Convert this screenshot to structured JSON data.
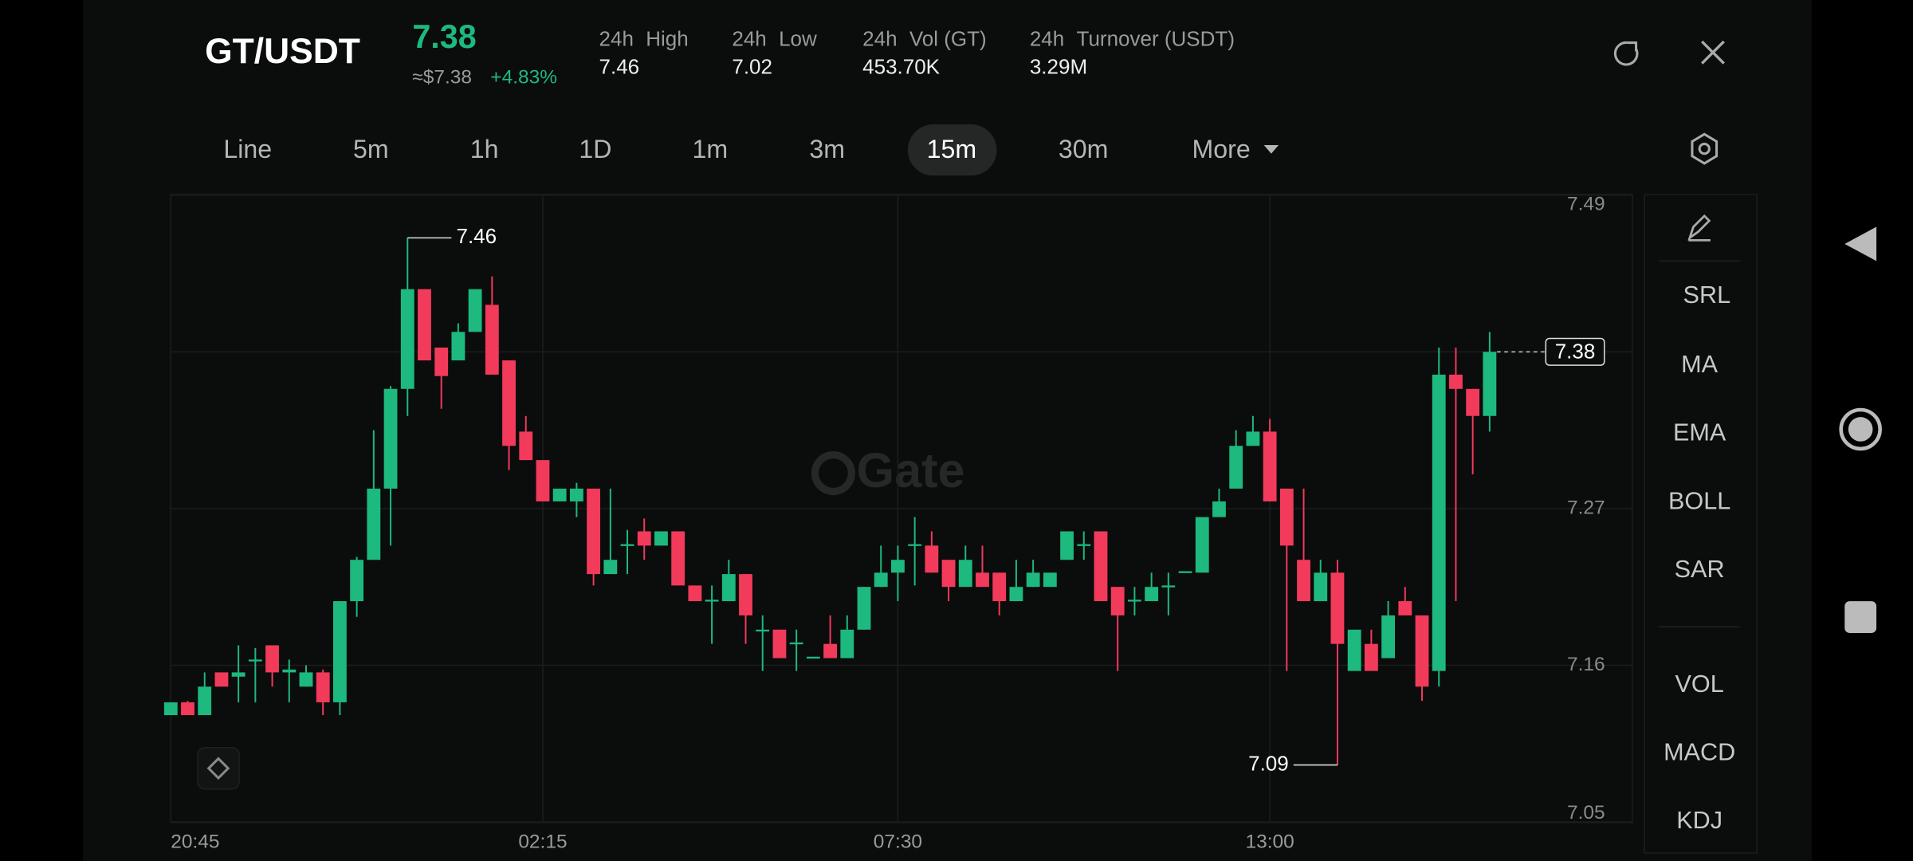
{
  "header": {
    "pair": "GT/USDT",
    "price": "7.38",
    "usd_price": "≈$7.38",
    "change": "+4.83%",
    "stats": [
      {
        "period": "24h",
        "label": "High",
        "value": "7.46"
      },
      {
        "period": "24h",
        "label": "Low",
        "value": "7.02"
      },
      {
        "period": "24h",
        "label": "Vol (GT)",
        "value": "453.70K"
      },
      {
        "period": "24h",
        "label": "Turnover (USDT)",
        "value": "3.29M"
      }
    ]
  },
  "tabs": {
    "items": [
      "Line",
      "5m",
      "1h",
      "1D",
      "1m",
      "3m",
      "15m",
      "30m",
      "More"
    ],
    "active": 6
  },
  "indicators": [
    "SRL",
    "MA",
    "EMA",
    "BOLL",
    "SAR",
    "VOL",
    "MACD",
    "KDJ"
  ],
  "watermark": "Gate",
  "chart_data": {
    "type": "candlestick",
    "up_color": "#1db97f",
    "down_color": "#f23a5b",
    "grid": true,
    "ylim": [
      7.05,
      7.49
    ],
    "yticks": [
      7.05,
      7.16,
      7.27,
      7.38,
      7.49
    ],
    "xticks": [
      {
        "value": 0,
        "label": "20:45"
      },
      {
        "value": 22,
        "label": "02:15"
      },
      {
        "value": 43,
        "label": "07:30"
      },
      {
        "value": 65,
        "label": "13:00"
      }
    ],
    "open": [
      7.125,
      7.134,
      7.125,
      7.155,
      7.152,
      7.163,
      7.174,
      7.155,
      7.145,
      7.155,
      7.134,
      7.205,
      7.234,
      7.284,
      7.354,
      7.424,
      7.383,
      7.374,
      7.394,
      7.413,
      7.374,
      7.324,
      7.304,
      7.275,
      7.275,
      7.284,
      7.224,
      7.244,
      7.254,
      7.244,
      7.254,
      7.216,
      7.205,
      7.205,
      7.224,
      7.184,
      7.185,
      7.175,
      7.165,
      7.175,
      7.165,
      7.185,
      7.215,
      7.225,
      7.244,
      7.244,
      7.234,
      7.215,
      7.225,
      7.225,
      7.205,
      7.215,
      7.215,
      7.234,
      7.244,
      7.254,
      7.215,
      7.205,
      7.205,
      7.215,
      7.225,
      7.225,
      7.264,
      7.284,
      7.314,
      7.324,
      7.284,
      7.234,
      7.205,
      7.225,
      7.156,
      7.175,
      7.165,
      7.205,
      7.195,
      7.156,
      7.364,
      7.354,
      7.335
    ],
    "high": [
      7.134,
      7.135,
      7.155,
      7.155,
      7.174,
      7.172,
      7.174,
      7.164,
      7.16,
      7.157,
      7.205,
      7.236,
      7.325,
      7.356,
      7.46,
      7.424,
      7.383,
      7.4,
      7.424,
      7.433,
      7.374,
      7.335,
      7.304,
      7.284,
      7.288,
      7.284,
      7.284,
      7.255,
      7.263,
      7.254,
      7.254,
      7.216,
      7.216,
      7.234,
      7.224,
      7.195,
      7.185,
      7.185,
      7.166,
      7.195,
      7.195,
      7.215,
      7.244,
      7.244,
      7.264,
      7.254,
      7.234,
      7.244,
      7.244,
      7.225,
      7.234,
      7.234,
      7.225,
      7.254,
      7.254,
      7.254,
      7.215,
      7.215,
      7.225,
      7.225,
      7.226,
      7.264,
      7.284,
      7.325,
      7.335,
      7.333,
      7.284,
      7.284,
      7.234,
      7.234,
      7.185,
      7.185,
      7.205,
      7.215,
      7.195,
      7.383,
      7.383,
      7.354,
      7.394
    ],
    "low": [
      7.125,
      7.125,
      7.125,
      7.145,
      7.134,
      7.134,
      7.145,
      7.134,
      7.145,
      7.125,
      7.125,
      7.194,
      7.234,
      7.244,
      7.335,
      7.374,
      7.34,
      7.374,
      7.394,
      7.364,
      7.297,
      7.304,
      7.275,
      7.275,
      7.264,
      7.216,
      7.224,
      7.224,
      7.234,
      7.244,
      7.216,
      7.205,
      7.175,
      7.205,
      7.175,
      7.156,
      7.165,
      7.156,
      7.165,
      7.165,
      7.165,
      7.185,
      7.215,
      7.205,
      7.216,
      7.225,
      7.205,
      7.215,
      7.215,
      7.195,
      7.205,
      7.215,
      7.215,
      7.234,
      7.234,
      7.205,
      7.156,
      7.195,
      7.205,
      7.195,
      7.225,
      7.225,
      7.264,
      7.284,
      7.314,
      7.275,
      7.156,
      7.205,
      7.205,
      7.09,
      7.156,
      7.156,
      7.165,
      7.195,
      7.135,
      7.145,
      7.205,
      7.294,
      7.324
    ],
    "close": [
      7.134,
      7.125,
      7.145,
      7.145,
      7.155,
      7.164,
      7.155,
      7.157,
      7.155,
      7.134,
      7.205,
      7.234,
      7.284,
      7.354,
      7.424,
      7.374,
      7.363,
      7.394,
      7.424,
      7.364,
      7.314,
      7.304,
      7.275,
      7.284,
      7.284,
      7.224,
      7.234,
      7.245,
      7.244,
      7.254,
      7.216,
      7.205,
      7.206,
      7.224,
      7.195,
      7.185,
      7.165,
      7.176,
      7.166,
      7.165,
      7.185,
      7.215,
      7.225,
      7.234,
      7.245,
      7.225,
      7.215,
      7.234,
      7.215,
      7.205,
      7.215,
      7.225,
      7.225,
      7.254,
      7.245,
      7.205,
      7.195,
      7.206,
      7.215,
      7.216,
      7.226,
      7.264,
      7.275,
      7.314,
      7.324,
      7.275,
      7.244,
      7.205,
      7.225,
      7.175,
      7.185,
      7.156,
      7.195,
      7.195,
      7.145,
      7.364,
      7.354,
      7.335,
      7.38
    ]
  }
}
